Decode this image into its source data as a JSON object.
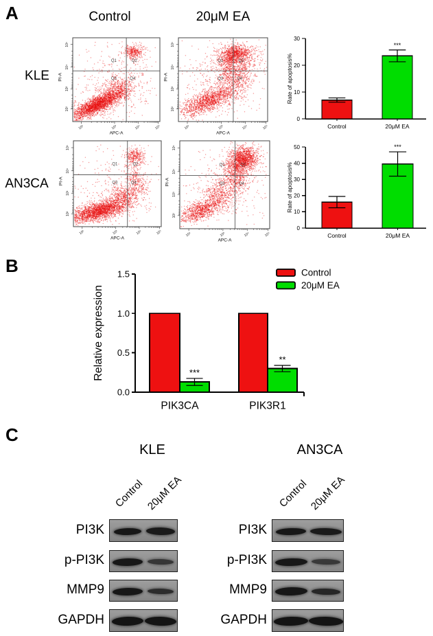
{
  "panel_a": {
    "label": "A",
    "col_headers": [
      "Control",
      "20μM EA"
    ],
    "row_labels": [
      "KLE",
      "AN3CA"
    ],
    "flow_axis": {
      "x_label": "APC-A",
      "y_label": "PI-A",
      "x_ticks": [
        "10²",
        "10³",
        "10⁴",
        "10⁵"
      ],
      "y_ticks": [
        "10⁵",
        "10⁴",
        "10³",
        "10²"
      ]
    },
    "quadrant_labels": [
      "Q1",
      "Q2",
      "Q3",
      "Q4"
    ],
    "flow_plots": [
      {
        "id": "kle-control",
        "row": "KLE",
        "condition": "Control",
        "clusters": [
          [
            0.28,
            0.8,
            0.16,
            0.045,
            -28,
            2300
          ],
          [
            0.5,
            0.63,
            0.1,
            0.07,
            -35,
            450
          ],
          [
            0.7,
            0.17,
            0.06,
            0.045,
            0,
            330
          ],
          [
            0.55,
            0.45,
            0.24,
            0.2,
            0,
            240
          ],
          [
            0.35,
            0.75,
            0.3,
            0.14,
            -20,
            320
          ]
        ]
      },
      {
        "id": "kle-ea",
        "row": "KLE",
        "condition": "20μM EA",
        "clusters": [
          [
            0.33,
            0.76,
            0.17,
            0.06,
            -25,
            1400
          ],
          [
            0.6,
            0.44,
            0.09,
            0.13,
            -10,
            650
          ],
          [
            0.63,
            0.2,
            0.09,
            0.06,
            -15,
            950
          ],
          [
            0.5,
            0.5,
            0.27,
            0.22,
            0,
            380
          ],
          [
            0.75,
            0.3,
            0.1,
            0.09,
            -40,
            280
          ]
        ]
      },
      {
        "id": "an3ca-control",
        "row": "AN3CA",
        "condition": "Control",
        "clusters": [
          [
            0.28,
            0.82,
            0.17,
            0.05,
            -15,
            2200
          ],
          [
            0.58,
            0.66,
            0.12,
            0.07,
            -35,
            550
          ],
          [
            0.72,
            0.46,
            0.05,
            0.1,
            -20,
            230
          ],
          [
            0.7,
            0.18,
            0.06,
            0.05,
            0,
            300
          ],
          [
            0.5,
            0.55,
            0.27,
            0.21,
            0,
            280
          ]
        ]
      },
      {
        "id": "an3ca-ea",
        "row": "AN3CA",
        "condition": "20μM EA",
        "clusters": [
          [
            0.22,
            0.8,
            0.12,
            0.05,
            -20,
            850
          ],
          [
            0.45,
            0.62,
            0.1,
            0.09,
            -45,
            550
          ],
          [
            0.7,
            0.22,
            0.09,
            0.07,
            -30,
            1500
          ],
          [
            0.62,
            0.42,
            0.07,
            0.09,
            -20,
            380
          ],
          [
            0.5,
            0.5,
            0.27,
            0.23,
            0,
            300
          ]
        ]
      }
    ]
  },
  "panel_b": {
    "label": "B"
  },
  "panel_c": {
    "label": "C",
    "groups": [
      {
        "title": "KLE",
        "lane_labels": [
          "Control",
          "20μM EA"
        ],
        "rows": [
          {
            "protein": "PI3K",
            "bands": [
              {
                "i": 0.97,
                "w": 0.4,
                "h": 10
              },
              {
                "i": 0.95,
                "w": 0.42,
                "h": 11
              }
            ]
          },
          {
            "protein": "p-PI3K",
            "bands": [
              {
                "i": 0.97,
                "w": 0.44,
                "h": 11
              },
              {
                "i": 0.72,
                "w": 0.38,
                "h": 8
              }
            ]
          },
          {
            "protein": "MMP9",
            "bands": [
              {
                "i": 0.97,
                "w": 0.44,
                "h": 11
              },
              {
                "i": 0.8,
                "w": 0.38,
                "h": 8
              }
            ]
          },
          {
            "protein": "GAPDH",
            "bands": [
              {
                "i": 1.0,
                "w": 0.46,
                "h": 13
              },
              {
                "i": 1.0,
                "w": 0.46,
                "h": 13
              }
            ]
          }
        ]
      },
      {
        "title": "AN3CA",
        "lane_labels": [
          "Control",
          "20μM EA"
        ],
        "rows": [
          {
            "protein": "PI3K",
            "bands": [
              {
                "i": 0.97,
                "w": 0.42,
                "h": 10
              },
              {
                "i": 0.95,
                "w": 0.44,
                "h": 10
              }
            ]
          },
          {
            "protein": "p-PI3K",
            "bands": [
              {
                "i": 0.97,
                "w": 0.45,
                "h": 11
              },
              {
                "i": 0.7,
                "w": 0.4,
                "h": 8
              }
            ]
          },
          {
            "protein": "MMP9",
            "bands": [
              {
                "i": 0.97,
                "w": 0.45,
                "h": 12
              },
              {
                "i": 0.85,
                "w": 0.4,
                "h": 9
              }
            ]
          },
          {
            "protein": "GAPDH",
            "bands": [
              {
                "i": 1.0,
                "w": 0.48,
                "h": 13
              },
              {
                "i": 1.0,
                "w": 0.48,
                "h": 13
              }
            ]
          }
        ]
      }
    ]
  },
  "chart_data": [
    {
      "id": "apoptosis-kle",
      "type": "bar",
      "cell_line": "KLE",
      "categories": [
        "Control",
        "20μM EA"
      ],
      "values": [
        7,
        23.5
      ],
      "errors": [
        0.8,
        2.2
      ],
      "significance": [
        "",
        "***"
      ],
      "bar_colors": [
        "#ee1111",
        "#00dd00"
      ],
      "ylabel": "Rate of apoptosis%",
      "xlabel": "",
      "ylim": [
        0,
        30
      ],
      "yticks": [
        0,
        10,
        20,
        30
      ],
      "ytick_labels": [
        "0",
        "10",
        "20",
        "30"
      ],
      "grid": false
    },
    {
      "id": "apoptosis-an3ca",
      "type": "bar",
      "cell_line": "AN3CA",
      "categories": [
        "Control",
        "20μM EA"
      ],
      "values": [
        16,
        39.5
      ],
      "errors": [
        3.5,
        7.5
      ],
      "significance": [
        "",
        "***"
      ],
      "bar_colors": [
        "#ee1111",
        "#00dd00"
      ],
      "ylabel": "Rate of apoptosis%",
      "xlabel": "",
      "ylim": [
        0,
        50
      ],
      "yticks": [
        0,
        10,
        20,
        30,
        40,
        50
      ],
      "ytick_labels": [
        "0",
        "10",
        "20",
        "30",
        "40",
        "50"
      ],
      "grid": false
    },
    {
      "id": "relative-expression",
      "type": "bar",
      "grouped": true,
      "categories": [
        "PIK3CA",
        "PIK3R1"
      ],
      "series": [
        {
          "name": "Control",
          "color": "#ee1111",
          "values": [
            1.0,
            1.0
          ],
          "errors": [
            0,
            0
          ],
          "significance": [
            "",
            ""
          ]
        },
        {
          "name": "20μM EA",
          "color": "#00dd00",
          "values": [
            0.13,
            0.3
          ],
          "errors": [
            0.045,
            0.04
          ],
          "significance": [
            "***",
            "**"
          ]
        }
      ],
      "ylabel": "Relative expression",
      "xlabel": "",
      "ylim": [
        0,
        1.5
      ],
      "yticks": [
        0,
        0.5,
        1.0,
        1.5
      ],
      "ytick_labels": [
        "0.0",
        "0.5",
        "1.0",
        "1.5"
      ],
      "legend_position": "top-right",
      "grid": false
    }
  ],
  "colors": {
    "control_red": "#ee1111",
    "ea_green": "#00dd00",
    "scatter_red": "#e81010"
  }
}
